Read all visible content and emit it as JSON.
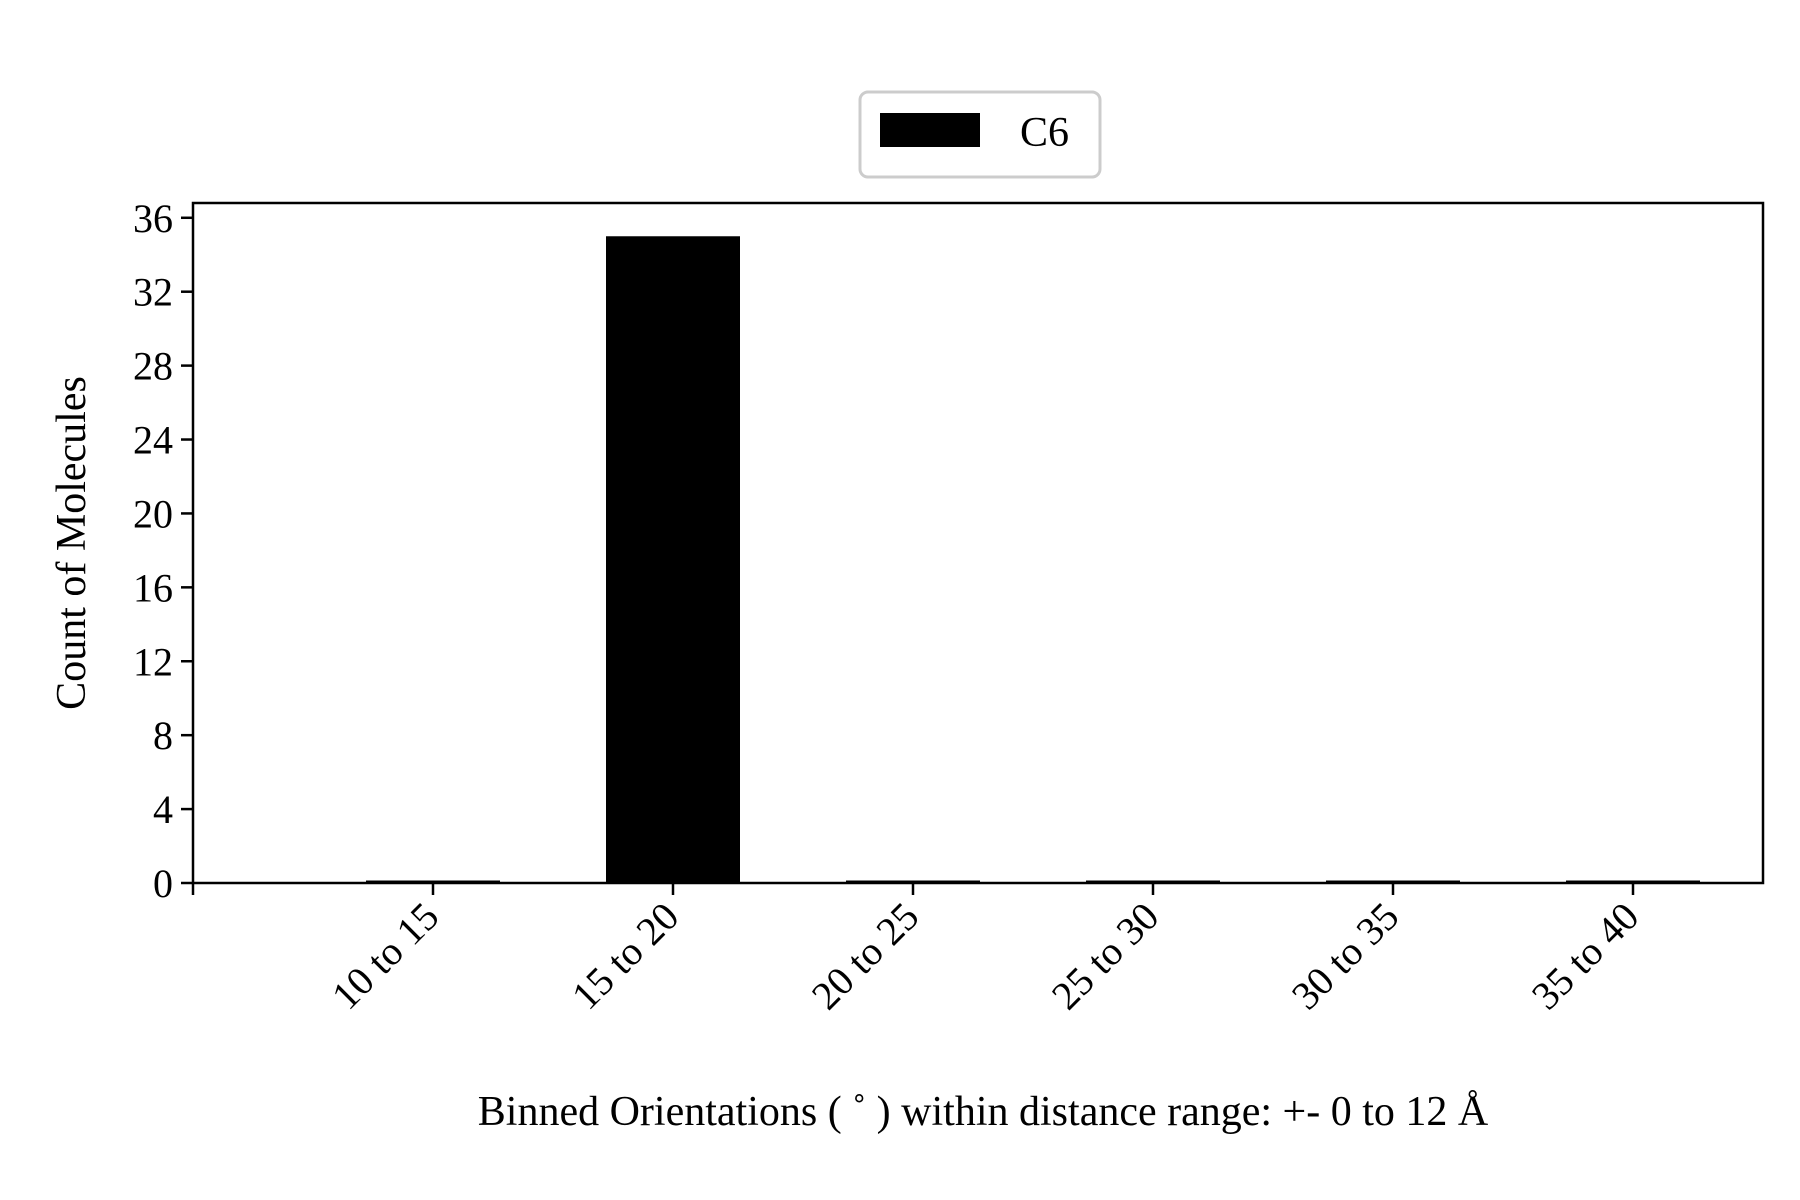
{
  "chart_data": {
    "type": "bar",
    "categories": [
      "10 to 15",
      "15 to 20",
      "20 to 25",
      "25 to 30",
      "30 to 35",
      "35 to 40"
    ],
    "series": [
      {
        "name": "C6",
        "values": [
          0,
          35,
          0,
          0,
          0,
          0
        ],
        "color": "#000000"
      }
    ],
    "xlabel": "Binned Orientations ( ˚ ) within distance range:  +- 0 to 12 Å",
    "ylabel": "Count of Molecules",
    "ylim": [
      0,
      36.8
    ],
    "yticks": [
      0,
      4,
      8,
      12,
      16,
      20,
      24,
      28,
      32,
      36
    ],
    "grid": false,
    "legend_position": "top-center"
  }
}
